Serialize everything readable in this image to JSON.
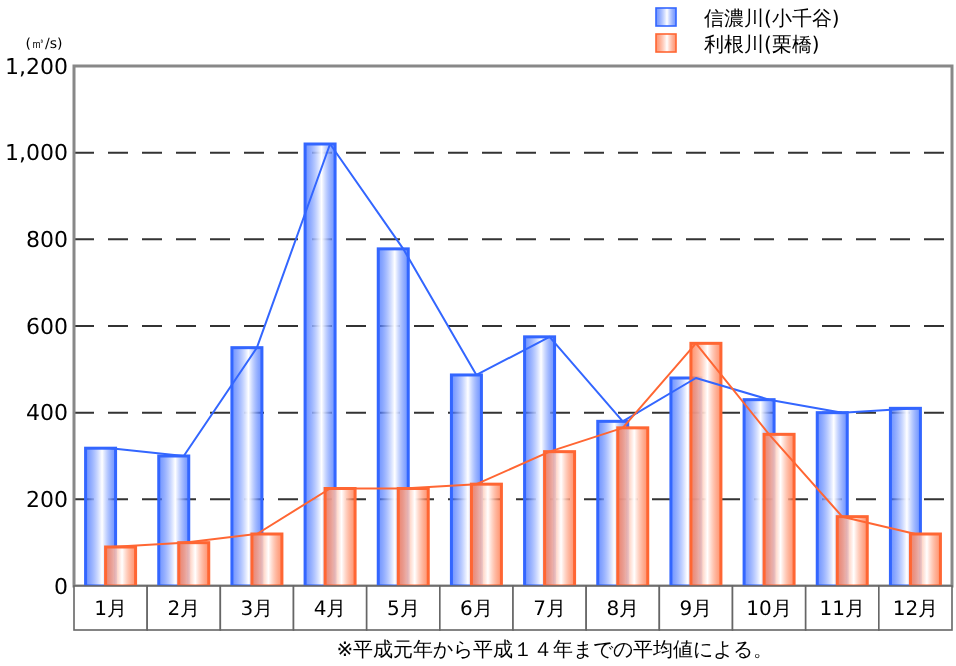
{
  "chart_data": {
    "type": "bar",
    "ylabel": "(㎥/s)",
    "categories": [
      "1月",
      "2月",
      "3月",
      "4月",
      "5月",
      "6月",
      "7月",
      "8月",
      "9月",
      "10月",
      "11月",
      "12月"
    ],
    "series": [
      {
        "name": "信濃川(小千谷)",
        "color": "#3366ff",
        "values": [
          318,
          300,
          550,
          1020,
          778,
          487,
          575,
          380,
          480,
          430,
          400,
          410
        ]
      },
      {
        "name": "利根川(栗橋)",
        "color": "#ff6633",
        "values": [
          90,
          100,
          120,
          225,
          225,
          235,
          310,
          365,
          560,
          350,
          160,
          120
        ]
      },
      {
        "type": "line",
        "color": "#3366ff",
        "values": [
          318,
          300,
          550,
          1020,
          778,
          487,
          575,
          380,
          480,
          430,
          400,
          410
        ]
      },
      {
        "type": "line",
        "color": "#ff6633",
        "values": [
          90,
          100,
          120,
          225,
          225,
          235,
          310,
          365,
          560,
          350,
          160,
          120
        ]
      }
    ],
    "ylim": [
      0,
      1200
    ],
    "yticks": [
      0,
      200,
      400,
      600,
      800,
      {
        "value": 1000,
        "label": "1,000"
      },
      {
        "value": 1200,
        "label": "1,200"
      }
    ],
    "grid": "y",
    "legend": "top right",
    "line_style": "solid",
    "marker": "none",
    "annotations": [
      "※平成元年から平成１４年までの平均値による。"
    ]
  }
}
